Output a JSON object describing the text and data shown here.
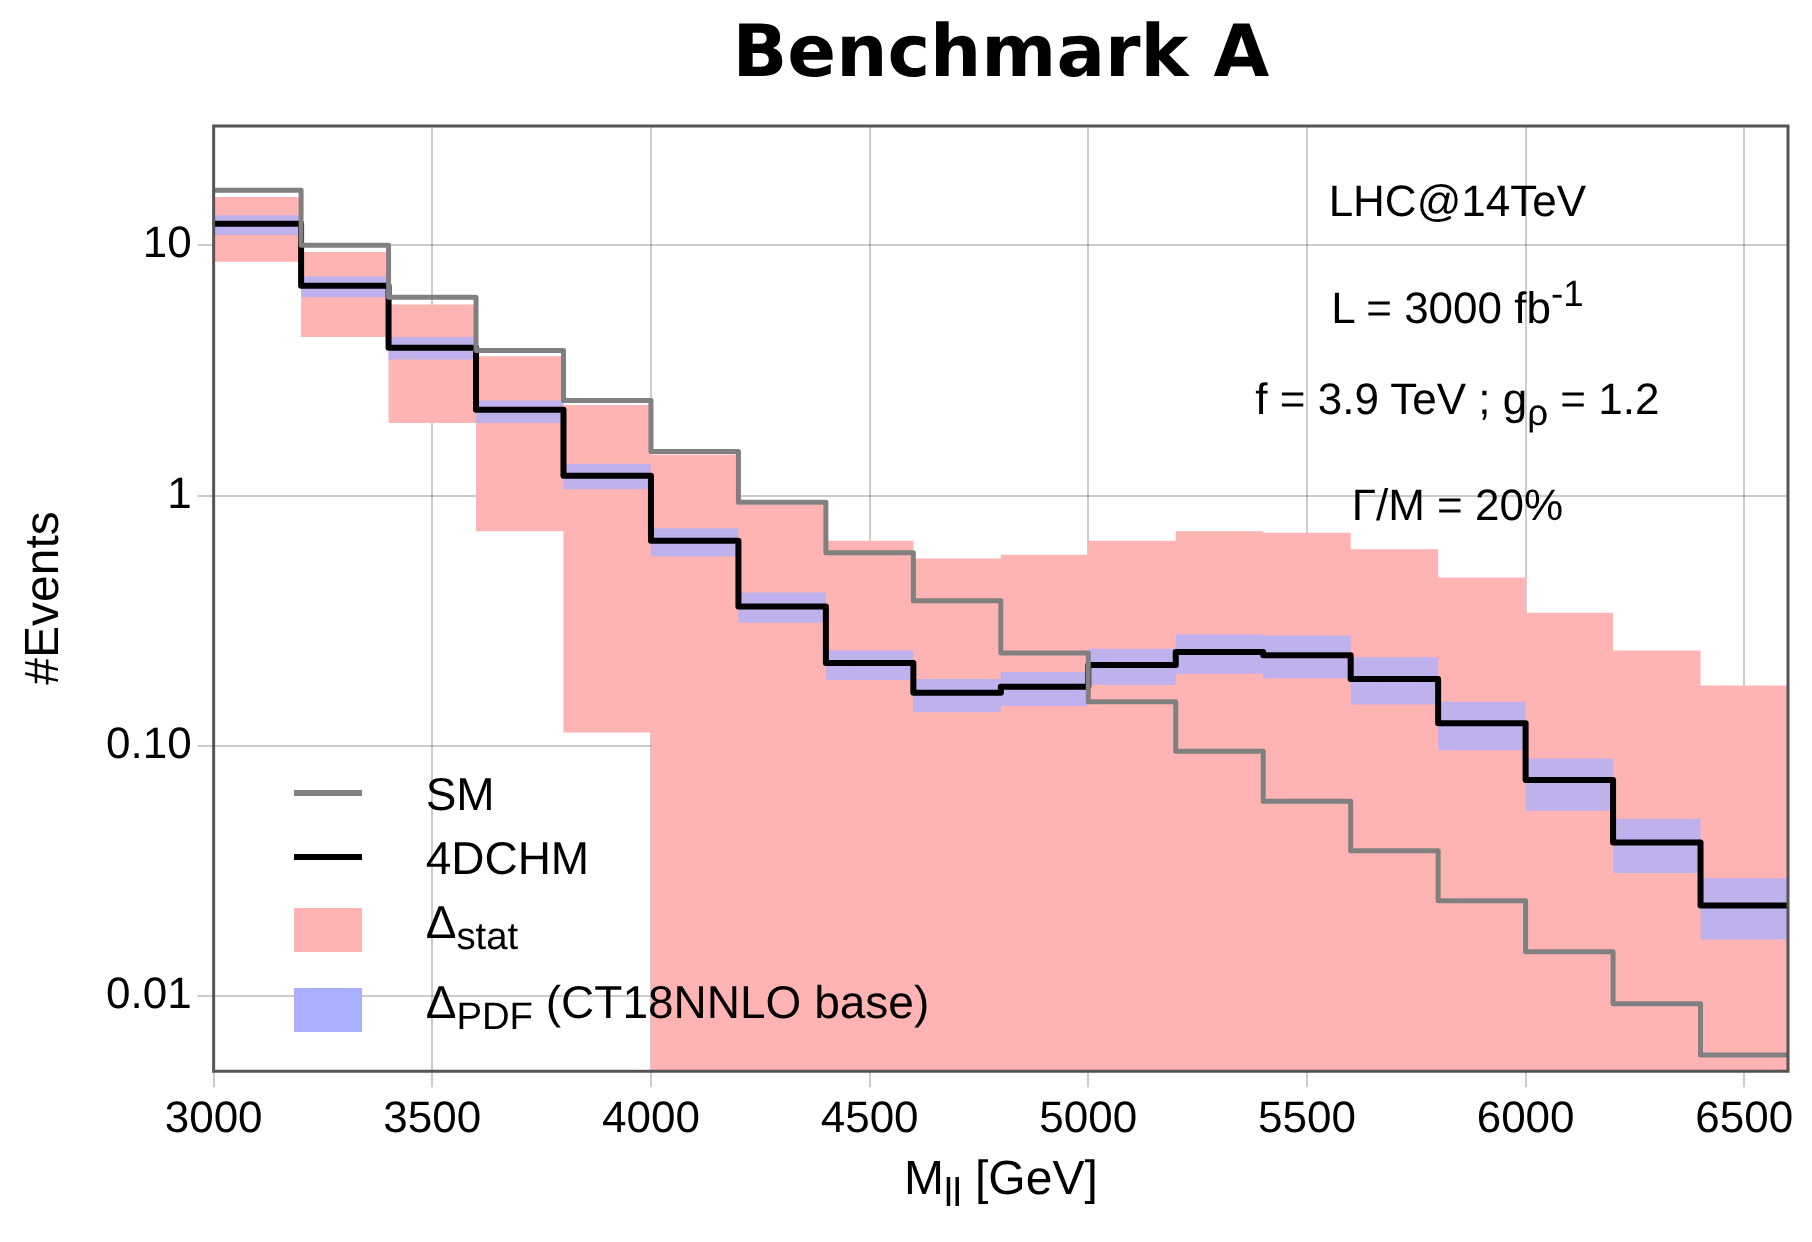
{
  "chart_data": {
    "type": "histogram",
    "title": "Benchmark A",
    "xlabel": "M$_{ll}$  [GeV]",
    "ylabel": "#Events",
    "bins": [
      3000,
      3200,
      3400,
      3600,
      3800,
      4000,
      4200,
      4400,
      4600,
      4800,
      5000,
      5200,
      5400,
      5600,
      5800,
      6000,
      6200,
      6400,
      6600
    ],
    "series": [
      {
        "name": "SM",
        "color": "#808080",
        "values": [
          16.6,
          10.0,
          6.2,
          3.8,
          2.4,
          1.5,
          0.94,
          0.59,
          0.38,
          0.235,
          0.15,
          0.095,
          0.06,
          0.038,
          0.024,
          0.015,
          0.0093,
          0.0058
        ]
      },
      {
        "name": "4DCHM",
        "color": "#000000",
        "values": [
          12.2,
          6.9,
          3.9,
          2.2,
          1.2,
          0.66,
          0.36,
          0.214,
          0.163,
          0.172,
          0.21,
          0.237,
          0.23,
          0.185,
          0.123,
          0.073,
          0.041,
          0.023
        ]
      },
      {
        "name": "Δ$_{stat}$",
        "type": "area",
        "color": "#ffb3b3",
        "x": [
          3000,
          3200,
          3200,
          3400,
          3400,
          3600,
          3600,
          3800,
          3800,
          4000,
          4000,
          4200,
          4200,
          4400,
          4400,
          4600,
          4600,
          4800,
          4800,
          5000,
          5000,
          5200,
          5200,
          5400,
          5400,
          5600,
          5600,
          5800,
          5800,
          6000,
          6000,
          6200,
          6200,
          6400,
          6400,
          6600
        ],
        "values": [
          null,
          null,
          null,
          null,
          null,
          null,
          null,
          null,
          null,
          null,
          null,
          null,
          null,
          null,
          null,
          null,
          null,
          null,
          null,
          null,
          null,
          null,
          null,
          null,
          null,
          null,
          null,
          null,
          null,
          null,
          null,
          null,
          null,
          null,
          null,
          null
        ],
        "lower": [
          8.6,
          8.6,
          4.3,
          4.3,
          1.95,
          1.95,
          0.72,
          0.72,
          0.113,
          0.113,
          0.005,
          0.005,
          0.005,
          0.005,
          0.005,
          0.005,
          0.005,
          0.005,
          0.005,
          0.005,
          0.005,
          0.005,
          0.005,
          0.005,
          0.005,
          0.005,
          0.005,
          0.005,
          0.005,
          0.005,
          0.005,
          0.005,
          0.005,
          0.005,
          0.005,
          0.005
        ],
        "upper": [
          15.6,
          15.6,
          9.4,
          9.4,
          5.8,
          5.8,
          3.6,
          3.6,
          2.3,
          2.3,
          1.46,
          1.46,
          0.92,
          0.92,
          0.66,
          0.66,
          0.56,
          0.56,
          0.58,
          0.58,
          0.66,
          0.66,
          0.72,
          0.72,
          0.71,
          0.71,
          0.61,
          0.61,
          0.47,
          0.47,
          0.34,
          0.34,
          0.24,
          0.24,
          0.174,
          0.174
        ]
      },
      {
        "name": "Δ$_{PDF}$ (CT18NNLO base)",
        "type": "area",
        "color": "#aab0ff",
        "x": [
          3000,
          3200,
          3200,
          3400,
          3400,
          3600,
          3600,
          3800,
          3800,
          4000,
          4000,
          4200,
          4200,
          4400,
          4400,
          4600,
          4600,
          4800,
          4800,
          5000,
          5000,
          5200,
          5200,
          5400,
          5400,
          5600,
          5600,
          5800,
          5800,
          6000,
          6000,
          6200,
          6200,
          6400,
          6400,
          6600
        ],
        "values": [
          null,
          null,
          null,
          null,
          null,
          null,
          null,
          null,
          null,
          null,
          null,
          null,
          null,
          null,
          null,
          null,
          null,
          null,
          null,
          null,
          null,
          null,
          null,
          null,
          null,
          null,
          null,
          null,
          null,
          null,
          null,
          null,
          null,
          null,
          null,
          null
        ],
        "lower": [
          11.0,
          11.0,
          6.2,
          6.2,
          3.5,
          3.5,
          1.95,
          1.95,
          1.06,
          1.06,
          0.57,
          0.57,
          0.31,
          0.31,
          0.183,
          0.183,
          0.136,
          0.136,
          0.144,
          0.144,
          0.175,
          0.175,
          0.194,
          0.194,
          0.186,
          0.186,
          0.146,
          0.146,
          0.096,
          0.096,
          0.055,
          0.055,
          0.031,
          0.031,
          0.0168,
          0.0168
        ],
        "upper": [
          13.2,
          13.2,
          7.5,
          7.5,
          4.3,
          4.3,
          2.4,
          2.4,
          1.34,
          1.34,
          0.74,
          0.74,
          0.41,
          0.41,
          0.241,
          0.241,
          0.185,
          0.185,
          0.197,
          0.197,
          0.244,
          0.244,
          0.279,
          0.279,
          0.276,
          0.276,
          0.226,
          0.226,
          0.15,
          0.15,
          0.089,
          0.089,
          0.051,
          0.051,
          0.0295,
          0.0295
        ]
      }
    ],
    "annotations": [
      "LHC@14TeV",
      "L = 3000 fb$^{-1}$",
      "f = 3.9 TeV ; g$_{ρ}$ = 1.2",
      "Γ/M = 20%"
    ],
    "xlim": [
      3000,
      6600
    ],
    "xticks": [
      3000,
      3500,
      4000,
      4500,
      5000,
      5500,
      6000,
      6500
    ],
    "ylim": [
      0.005,
      30
    ],
    "yticks": [
      {
        "value": 0.01,
        "label": "0.01"
      },
      {
        "value": 0.1,
        "label": "0.10"
      },
      {
        "value": 1,
        "label": "1"
      },
      {
        "value": 10,
        "label": "10"
      }
    ],
    "log": true,
    "grid": true,
    "legend": "bottom left"
  }
}
